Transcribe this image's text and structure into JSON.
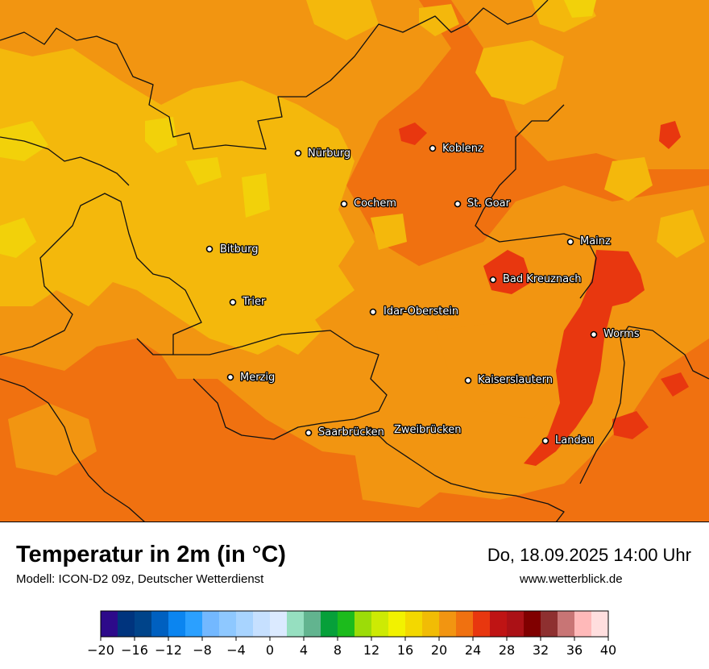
{
  "map": {
    "cities": [
      {
        "name": "Nürburg"
      },
      {
        "name": "Koblenz"
      },
      {
        "name": "Cochem"
      },
      {
        "name": "St. Goar"
      },
      {
        "name": "Mainz"
      },
      {
        "name": "Bitburg"
      },
      {
        "name": "Bad Kreuznach"
      },
      {
        "name": "Trier"
      },
      {
        "name": "Idar-Oberstein"
      },
      {
        "name": "Worms"
      },
      {
        "name": "Merzig"
      },
      {
        "name": "Kaiserslautern"
      },
      {
        "name": "Saarbrücken"
      },
      {
        "name": "Zweibrücken"
      },
      {
        "name": "Landau"
      }
    ],
    "dominant_temperature_class_c": "22-24",
    "colors": {
      "base": "#f07110",
      "mid": "#f29511",
      "light": "#f4b80c",
      "yellow": "#f4d90c",
      "hot": "#e8370f"
    }
  },
  "footer": {
    "title": "Temperatur in 2m (in °C)",
    "model": "Modell: ICON-D2 09z, Deutscher Wetterdienst",
    "datetime": "Do, 18.09.2025 14:00 Uhr",
    "website": "www.wetterblick.de"
  },
  "legend": {
    "colors": [
      "#2d0a8a",
      "#00347e",
      "#00448a",
      "#0060c0",
      "#0b85f0",
      "#2ba0ff",
      "#73b8ff",
      "#8ec8ff",
      "#a8d4ff",
      "#c6e0ff",
      "#dbeaff",
      "#96dfc0",
      "#62b48f",
      "#06a03a",
      "#1cbb1c",
      "#9cdc08",
      "#cdea04",
      "#f2f200",
      "#f3d800",
      "#f1bc05",
      "#f29511",
      "#f07110",
      "#e8370f",
      "#bf1414",
      "#ab1116",
      "#800000",
      "#8e3030",
      "#c87575",
      "#ffb9b9",
      "#ffdede"
    ],
    "tick_labels": [
      "−20",
      "−16",
      "−12",
      "−8",
      "−4",
      "0",
      "4",
      "8",
      "12",
      "16",
      "20",
      "24",
      "28",
      "32",
      "36",
      "40"
    ]
  }
}
